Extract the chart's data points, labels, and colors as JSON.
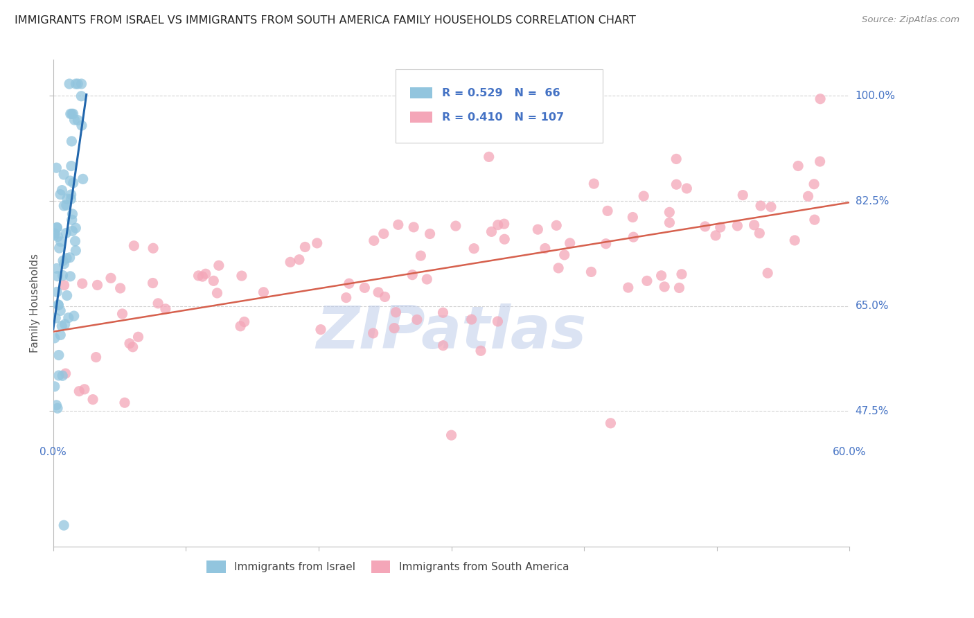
{
  "title": "IMMIGRANTS FROM ISRAEL VS IMMIGRANTS FROM SOUTH AMERICA FAMILY HOUSEHOLDS CORRELATION CHART",
  "source": "Source: ZipAtlas.com",
  "ylabel": "Family Households",
  "ytick_labels": [
    "100.0%",
    "82.5%",
    "65.0%",
    "47.5%"
  ],
  "ytick_values": [
    1.0,
    0.825,
    0.65,
    0.475
  ],
  "legend_israel_R": "0.529",
  "legend_israel_N": "66",
  "legend_sa_R": "0.410",
  "legend_sa_N": "107",
  "israel_color": "#92c5de",
  "israel_line_color": "#2166ac",
  "sa_color": "#f4a6b8",
  "sa_line_color": "#d6604d",
  "background_color": "#ffffff",
  "grid_color": "#d0d0d0",
  "title_color": "#222222",
  "axis_label_color": "#4472c4",
  "tick_label_color": "#555555",
  "legend_R_color": "#4472c4",
  "watermark_color": "#b8c8e8",
  "xlim": [
    0.0,
    0.6
  ],
  "ylim": [
    0.25,
    1.06
  ]
}
